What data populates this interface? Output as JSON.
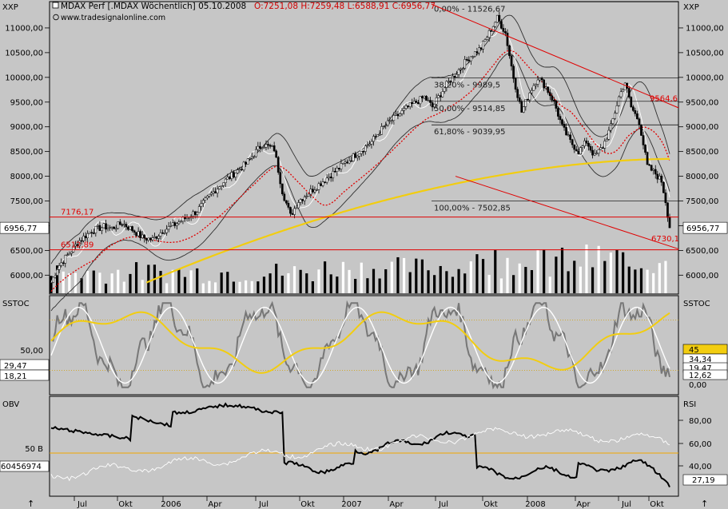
{
  "header": {
    "symbol": "XXP",
    "symbol_right": "XXP",
    "title": "MDAX Perf [.MDAX Wöchentlich] 05.10.2008",
    "ohlc": "O:7251,08 H:7259,48 L:6588,91 C:6956,77",
    "source": "www.tradesignalonline.com"
  },
  "colors": {
    "price": "#000000",
    "ma": "#f2cd10",
    "red": "#e00000",
    "white": "#ffffff",
    "band": "#303030",
    "stoch_grey": "#777777",
    "volume_dark": "#000000",
    "volume_light": "#ffffff"
  },
  "chart_data": [
    {
      "type": "candlestick",
      "panel": "price",
      "x": [
        "Jul",
        "Okt",
        "2006",
        "Apr",
        "Jul",
        "Okt",
        "2007",
        "Apr",
        "Jul",
        "Okt",
        "2008",
        "Apr",
        "Jul",
        "Okt"
      ],
      "ylim": [
        5650,
        11500
      ],
      "y_ticks": [
        6000,
        6500,
        7000,
        7500,
        8000,
        8500,
        9000,
        9500,
        10000,
        10500,
        11000
      ],
      "y_tick_labels": [
        "6000,00",
        "6500,00",
        "7000,00",
        "7500,00",
        "8000,00",
        "8500,00",
        "9000,00",
        "9500,00",
        "10000,00",
        "10500,00",
        "11000,00"
      ],
      "close_path": [
        [
          0,
          5850
        ],
        [
          3,
          6150
        ],
        [
          8,
          6400
        ],
        [
          14,
          6700
        ],
        [
          20,
          6900
        ],
        [
          26,
          6980
        ],
        [
          30,
          6950
        ],
        [
          35,
          7050
        ],
        [
          40,
          6920
        ],
        [
          45,
          6760
        ],
        [
          50,
          6720
        ],
        [
          55,
          6900
        ],
        [
          60,
          7000
        ],
        [
          66,
          7150
        ],
        [
          72,
          7300
        ],
        [
          78,
          7600
        ],
        [
          84,
          7850
        ],
        [
          90,
          8050
        ],
        [
          96,
          8250
        ],
        [
          100,
          8450
        ],
        [
          104,
          8650
        ],
        [
          110,
          8550
        ],
        [
          114,
          7700
        ],
        [
          118,
          7200
        ],
        [
          122,
          7500
        ],
        [
          128,
          7700
        ],
        [
          134,
          7900
        ],
        [
          140,
          8100
        ],
        [
          146,
          8300
        ],
        [
          152,
          8500
        ],
        [
          158,
          8700
        ],
        [
          164,
          9000
        ],
        [
          170,
          9200
        ],
        [
          176,
          9400
        ],
        [
          180,
          9500
        ],
        [
          184,
          9600
        ],
        [
          188,
          9400
        ],
        [
          194,
          9800
        ],
        [
          200,
          10100
        ],
        [
          206,
          10400
        ],
        [
          212,
          10600
        ],
        [
          216,
          10900
        ],
        [
          220,
          11200
        ],
        [
          224,
          10900
        ],
        [
          228,
          10000
        ],
        [
          232,
          9300
        ],
        [
          236,
          9700
        ],
        [
          240,
          10000
        ],
        [
          244,
          9800
        ],
        [
          248,
          9500
        ],
        [
          252,
          9000
        ],
        [
          256,
          8700
        ],
        [
          260,
          8500
        ],
        [
          264,
          8700
        ],
        [
          268,
          8400
        ],
        [
          272,
          8600
        ],
        [
          276,
          9000
        ],
        [
          280,
          9600
        ],
        [
          283,
          9900
        ],
        [
          286,
          9400
        ],
        [
          290,
          9100
        ],
        [
          294,
          8200
        ],
        [
          298,
          8050
        ],
        [
          301,
          7900
        ],
        [
          303,
          7500
        ],
        [
          305,
          6957
        ]
      ],
      "last_price": "6956,77",
      "levels": [
        {
          "label": "7176,17",
          "value": 7176
        },
        {
          "label": "6512,89",
          "value": 6513
        }
      ],
      "fibonacci": [
        {
          "label": "0,00% - 11526,67",
          "value": 11527
        },
        {
          "label": "38,20% - 9989,5",
          "value": 9990
        },
        {
          "label": "50,00% - 9514,85",
          "value": 9515
        },
        {
          "label": "61,80% - 9039,95",
          "value": 9040
        },
        {
          "label": "100,00% - 7502,85",
          "value": 7503
        }
      ],
      "trendlines": [
        {
          "label": "9564,6",
          "value": 9565
        },
        {
          "label": "6730,1",
          "value": 6730
        }
      ],
      "moving_average_start": [
        47,
        5850
      ],
      "moving_average_end": [
        305,
        8350
      ]
    },
    {
      "type": "line",
      "panel": "stochastic",
      "title": "SSTOC",
      "title_right": "SSTOC",
      "ylim": [
        -5,
        105
      ],
      "y_tick_labels_left": [
        "50,00",
        "29,47",
        "18,21"
      ],
      "y_tick_labels_right": [
        "45",
        "34,34",
        "19,47",
        "12,62",
        "0,00"
      ],
      "reference_lines": [
        80,
        20
      ]
    },
    {
      "type": "line",
      "panel": "obv_rsi",
      "title": "OBV",
      "title_right": "RSI",
      "obv_label": "50 B",
      "obv_value": "60456974",
      "y_tick_labels_right": [
        "80,00",
        "60,00",
        "40,00"
      ],
      "rsi_last": "27,19"
    }
  ]
}
